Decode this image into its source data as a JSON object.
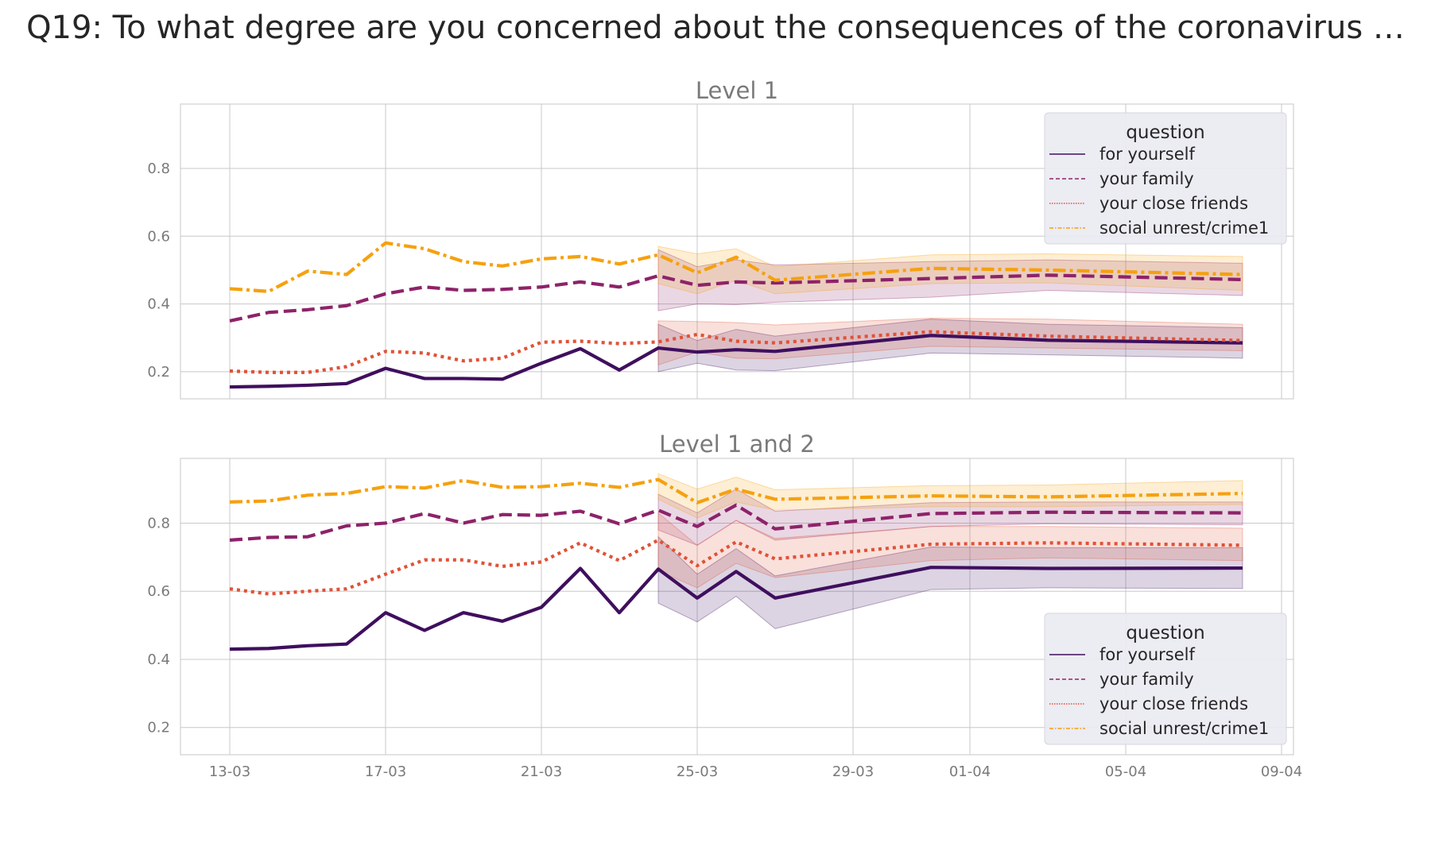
{
  "figure": {
    "title": "Q19: To what degree are you concerned about the consequences of the coronavirus …"
  },
  "chart_data": [
    {
      "type": "line",
      "title": "Level 1",
      "xlabel": "",
      "ylabel": "",
      "ylim": [
        0.12,
        0.99
      ],
      "y_ticks": [
        0.2,
        0.4,
        0.6,
        0.8
      ],
      "y_tick_labels": [
        "0.2",
        "0.4",
        "0.6",
        "0.8"
      ],
      "x_tick_labels": [],
      "grid": true,
      "legend": {
        "title": "question",
        "position": "top-right"
      },
      "series": [
        {
          "name": "for yourself",
          "color": "#3f0f5e",
          "style": "solid",
          "x": [
            "13-03",
            "14-03",
            "15-03",
            "16-03",
            "17-03",
            "18-03",
            "19-03",
            "20-03",
            "21-03",
            "22-03",
            "23-03",
            "24-03",
            "25-03",
            "26-03",
            "27-03",
            "31-03",
            "03-04",
            "08-04"
          ],
          "y": [
            0.155,
            0.157,
            0.16,
            0.165,
            0.21,
            0.18,
            0.18,
            0.178,
            0.225,
            0.268,
            0.205,
            0.27,
            0.258,
            0.265,
            0.26,
            0.307,
            0.293,
            0.285
          ],
          "band_x": [
            "24-03",
            "25-03",
            "26-03",
            "27-03",
            "31-03",
            "03-04",
            "08-04"
          ],
          "band_low": [
            0.2,
            0.225,
            0.205,
            0.203,
            0.255,
            0.25,
            0.24
          ],
          "band_high": [
            0.34,
            0.292,
            0.325,
            0.305,
            0.355,
            0.34,
            0.33
          ]
        },
        {
          "name": "your family",
          "color": "#8d2369",
          "style": "dashed",
          "x": [
            "13-03",
            "14-03",
            "15-03",
            "16-03",
            "17-03",
            "18-03",
            "19-03",
            "20-03",
            "21-03",
            "22-03",
            "23-03",
            "24-03",
            "25-03",
            "26-03",
            "27-03",
            "31-03",
            "03-04",
            "08-04"
          ],
          "y": [
            0.35,
            0.375,
            0.383,
            0.395,
            0.43,
            0.45,
            0.44,
            0.443,
            0.45,
            0.465,
            0.45,
            0.483,
            0.455,
            0.465,
            0.462,
            0.475,
            0.485,
            0.472
          ],
          "band_x": [
            "24-03",
            "25-03",
            "26-03",
            "27-03",
            "31-03",
            "03-04",
            "08-04"
          ],
          "band_low": [
            0.38,
            0.4,
            0.398,
            0.405,
            0.42,
            0.44,
            0.425
          ],
          "band_high": [
            0.56,
            0.51,
            0.53,
            0.515,
            0.525,
            0.53,
            0.52
          ]
        },
        {
          "name": "your close friends",
          "color": "#e05237",
          "style": "dotted",
          "x": [
            "13-03",
            "14-03",
            "15-03",
            "16-03",
            "17-03",
            "18-03",
            "19-03",
            "20-03",
            "21-03",
            "22-03",
            "23-03",
            "24-03",
            "25-03",
            "26-03",
            "27-03",
            "31-03",
            "03-04",
            "08-04"
          ],
          "y": [
            0.202,
            0.198,
            0.198,
            0.215,
            0.26,
            0.255,
            0.232,
            0.24,
            0.287,
            0.29,
            0.283,
            0.288,
            0.31,
            0.29,
            0.285,
            0.318,
            0.305,
            0.292
          ],
          "band_x": [
            "24-03",
            "25-03",
            "26-03",
            "27-03",
            "31-03",
            "03-04",
            "08-04"
          ],
          "band_low": [
            0.22,
            0.258,
            0.24,
            0.238,
            0.275,
            0.27,
            0.262
          ],
          "band_high": [
            0.35,
            0.348,
            0.345,
            0.338,
            0.358,
            0.355,
            0.34
          ]
        },
        {
          "name": "social unrest/crime1",
          "color": "#f5a10f",
          "style": "dashdot",
          "x": [
            "13-03",
            "14-03",
            "15-03",
            "16-03",
            "17-03",
            "18-03",
            "19-03",
            "20-03",
            "21-03",
            "22-03",
            "23-03",
            "24-03",
            "25-03",
            "26-03",
            "27-03",
            "31-03",
            "03-04",
            "08-04"
          ],
          "y": [
            0.445,
            0.437,
            0.497,
            0.487,
            0.58,
            0.563,
            0.525,
            0.512,
            0.533,
            0.54,
            0.518,
            0.545,
            0.492,
            0.538,
            0.47,
            0.505,
            0.5,
            0.487
          ],
          "band_x": [
            "24-03",
            "25-03",
            "26-03",
            "27-03",
            "31-03",
            "03-04",
            "08-04"
          ],
          "band_low": [
            0.46,
            0.43,
            0.47,
            0.43,
            0.46,
            0.462,
            0.44
          ],
          "band_high": [
            0.57,
            0.548,
            0.563,
            0.51,
            0.545,
            0.548,
            0.54
          ]
        }
      ]
    },
    {
      "type": "line",
      "title": "Level 1 and 2",
      "xlabel": "",
      "ylabel": "",
      "ylim": [
        0.12,
        0.99
      ],
      "y_ticks": [
        0.2,
        0.4,
        0.6,
        0.8
      ],
      "y_tick_labels": [
        "0.2",
        "0.4",
        "0.6",
        "0.8"
      ],
      "x_tick_labels": [
        "13-03",
        "17-03",
        "21-03",
        "25-03",
        "29-03",
        "01-04",
        "05-04",
        "09-04"
      ],
      "grid": true,
      "legend": {
        "title": "question",
        "position": "bottom-right"
      },
      "series": [
        {
          "name": "for yourself",
          "color": "#3f0f5e",
          "style": "solid",
          "x": [
            "13-03",
            "14-03",
            "15-03",
            "16-03",
            "17-03",
            "18-03",
            "19-03",
            "20-03",
            "21-03",
            "22-03",
            "23-03",
            "24-03",
            "25-03",
            "26-03",
            "27-03",
            "31-03",
            "03-04",
            "08-04"
          ],
          "y": [
            0.43,
            0.432,
            0.44,
            0.445,
            0.537,
            0.485,
            0.537,
            0.512,
            0.553,
            0.667,
            0.537,
            0.665,
            0.58,
            0.658,
            0.58,
            0.67,
            0.667,
            0.668
          ],
          "band_x": [
            "24-03",
            "25-03",
            "26-03",
            "27-03",
            "31-03",
            "03-04",
            "08-04"
          ],
          "band_low": [
            0.565,
            0.51,
            0.585,
            0.49,
            0.605,
            0.61,
            0.608
          ],
          "band_high": [
            0.76,
            0.65,
            0.725,
            0.645,
            0.73,
            0.728,
            0.728
          ]
        },
        {
          "name": "your family",
          "color": "#8d2369",
          "style": "dashed",
          "x": [
            "13-03",
            "14-03",
            "15-03",
            "16-03",
            "17-03",
            "18-03",
            "19-03",
            "20-03",
            "21-03",
            "22-03",
            "23-03",
            "24-03",
            "25-03",
            "26-03",
            "27-03",
            "31-03",
            "03-04",
            "08-04"
          ],
          "y": [
            0.75,
            0.758,
            0.76,
            0.792,
            0.8,
            0.828,
            0.8,
            0.825,
            0.823,
            0.835,
            0.798,
            0.838,
            0.79,
            0.853,
            0.783,
            0.828,
            0.832,
            0.83
          ],
          "band_x": [
            "24-03",
            "25-03",
            "26-03",
            "27-03",
            "31-03",
            "03-04",
            "08-04"
          ],
          "band_low": [
            0.78,
            0.735,
            0.808,
            0.75,
            0.79,
            0.798,
            0.795
          ],
          "band_high": [
            0.885,
            0.83,
            0.9,
            0.835,
            0.86,
            0.862,
            0.862
          ]
        },
        {
          "name": "your close friends",
          "color": "#e05237",
          "style": "dotted",
          "x": [
            "13-03",
            "14-03",
            "15-03",
            "16-03",
            "17-03",
            "18-03",
            "19-03",
            "20-03",
            "21-03",
            "22-03",
            "23-03",
            "24-03",
            "25-03",
            "26-03",
            "27-03",
            "31-03",
            "03-04",
            "08-04"
          ],
          "y": [
            0.607,
            0.592,
            0.6,
            0.607,
            0.65,
            0.692,
            0.692,
            0.673,
            0.686,
            0.742,
            0.69,
            0.75,
            0.675,
            0.745,
            0.695,
            0.738,
            0.742,
            0.735
          ],
          "band_x": [
            "24-03",
            "25-03",
            "26-03",
            "27-03",
            "31-03",
            "03-04",
            "08-04"
          ],
          "band_low": [
            0.66,
            0.61,
            0.682,
            0.64,
            0.69,
            0.698,
            0.69
          ],
          "band_high": [
            0.83,
            0.735,
            0.808,
            0.755,
            0.79,
            0.79,
            0.785
          ]
        },
        {
          "name": "social unrest/crime1",
          "color": "#f5a10f",
          "style": "dashdot",
          "x": [
            "13-03",
            "14-03",
            "15-03",
            "16-03",
            "17-03",
            "18-03",
            "19-03",
            "20-03",
            "21-03",
            "22-03",
            "23-03",
            "24-03",
            "25-03",
            "26-03",
            "27-03",
            "31-03",
            "03-04",
            "08-04"
          ],
          "y": [
            0.862,
            0.865,
            0.882,
            0.887,
            0.907,
            0.903,
            0.925,
            0.905,
            0.907,
            0.917,
            0.905,
            0.928,
            0.86,
            0.9,
            0.87,
            0.88,
            0.877,
            0.887
          ],
          "band_x": [
            "24-03",
            "25-03",
            "26-03",
            "27-03",
            "31-03",
            "03-04",
            "08-04"
          ],
          "band_low": [
            0.87,
            0.815,
            0.862,
            0.838,
            0.848,
            0.848,
            0.855
          ],
          "band_high": [
            0.945,
            0.9,
            0.935,
            0.898,
            0.91,
            0.912,
            0.925
          ]
        }
      ]
    }
  ]
}
